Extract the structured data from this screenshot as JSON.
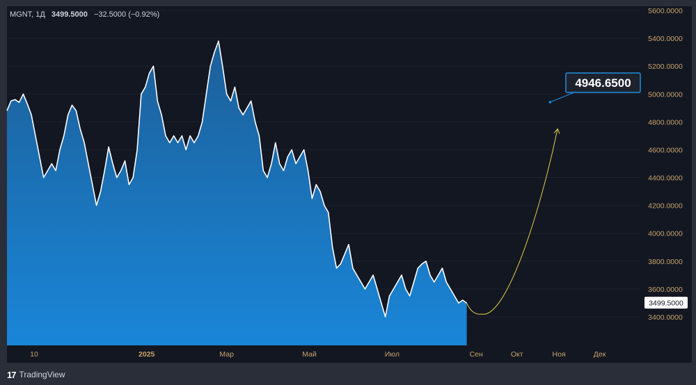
{
  "legend": {
    "symbol": "MGNT, 1Д",
    "price": "3499.5000",
    "change": "−32.5000 (−0.92%)"
  },
  "footer": {
    "brand": "TradingView",
    "logo_icon": "tradingview-logo-icon"
  },
  "colors": {
    "background": "#131722",
    "area_top": "#1c5f99",
    "area_bottom": "#1a86d8",
    "line": "#ffffff",
    "axis_text": "#c8a46a",
    "projection": "#e6cf45",
    "target_box": "#1f8fe0"
  },
  "chart_data": {
    "type": "area",
    "title": "",
    "xlabel": "",
    "ylabel": "",
    "ylim": [
      3200,
      5600
    ],
    "y_ticks": [
      "3400.0000",
      "3600.0000",
      "3800.0000",
      "4000.0000",
      "4200.0000",
      "4400.0000",
      "4600.0000",
      "4800.0000",
      "5000.0000",
      "5200.0000",
      "5400.0000",
      "5600.0000"
    ],
    "x_ticks": [
      "10",
      "2025",
      "Мар",
      "Май",
      "Июл",
      "Сен",
      "Окт",
      "Ноя",
      "Дек"
    ],
    "x_start": "2024-09-20",
    "x_end": "2025-12-31",
    "series": [
      {
        "values": [
          [
            "2024-09-20",
            4880
          ],
          [
            "2024-09-23",
            4950
          ],
          [
            "2024-09-26",
            4960
          ],
          [
            "2024-09-29",
            4940
          ],
          [
            "2024-10-02",
            5000
          ],
          [
            "2024-10-05",
            4930
          ],
          [
            "2024-10-08",
            4850
          ],
          [
            "2024-10-11",
            4700
          ],
          [
            "2024-10-14",
            4550
          ],
          [
            "2024-10-17",
            4400
          ],
          [
            "2024-10-20",
            4450
          ],
          [
            "2024-10-23",
            4500
          ],
          [
            "2024-10-26",
            4450
          ],
          [
            "2024-10-29",
            4600
          ],
          [
            "2024-11-01",
            4700
          ],
          [
            "2024-11-04",
            4850
          ],
          [
            "2024-11-07",
            4920
          ],
          [
            "2024-11-10",
            4880
          ],
          [
            "2024-11-13",
            4750
          ],
          [
            "2024-11-16",
            4650
          ],
          [
            "2024-11-19",
            4500
          ],
          [
            "2024-11-22",
            4350
          ],
          [
            "2024-11-25",
            4200
          ],
          [
            "2024-11-28",
            4300
          ],
          [
            "2024-12-01",
            4450
          ],
          [
            "2024-12-04",
            4620
          ],
          [
            "2024-12-07",
            4500
          ],
          [
            "2024-12-10",
            4400
          ],
          [
            "2024-12-13",
            4450
          ],
          [
            "2024-12-16",
            4520
          ],
          [
            "2024-12-19",
            4350
          ],
          [
            "2024-12-22",
            4400
          ],
          [
            "2024-12-25",
            4600
          ],
          [
            "2024-12-28",
            5000
          ],
          [
            "2024-12-31",
            5050
          ],
          [
            "2025-01-03",
            5150
          ],
          [
            "2025-01-06",
            5200
          ],
          [
            "2025-01-09",
            4950
          ],
          [
            "2025-01-12",
            4850
          ],
          [
            "2025-01-15",
            4700
          ],
          [
            "2025-01-18",
            4650
          ],
          [
            "2025-01-21",
            4700
          ],
          [
            "2025-01-24",
            4650
          ],
          [
            "2025-01-27",
            4700
          ],
          [
            "2025-01-30",
            4600
          ],
          [
            "2025-02-02",
            4700
          ],
          [
            "2025-02-05",
            4650
          ],
          [
            "2025-02-08",
            4700
          ],
          [
            "2025-02-11",
            4800
          ],
          [
            "2025-02-14",
            5000
          ],
          [
            "2025-02-17",
            5200
          ],
          [
            "2025-02-20",
            5300
          ],
          [
            "2025-02-23",
            5380
          ],
          [
            "2025-02-26",
            5200
          ],
          [
            "2025-03-01",
            5000
          ],
          [
            "2025-03-04",
            4950
          ],
          [
            "2025-03-07",
            5050
          ],
          [
            "2025-03-10",
            4900
          ],
          [
            "2025-03-13",
            4850
          ],
          [
            "2025-03-16",
            4900
          ],
          [
            "2025-03-19",
            4950
          ],
          [
            "2025-03-22",
            4800
          ],
          [
            "2025-03-25",
            4700
          ],
          [
            "2025-03-28",
            4450
          ],
          [
            "2025-03-31",
            4400
          ],
          [
            "2025-04-03",
            4500
          ],
          [
            "2025-04-06",
            4650
          ],
          [
            "2025-04-09",
            4500
          ],
          [
            "2025-04-12",
            4450
          ],
          [
            "2025-04-15",
            4550
          ],
          [
            "2025-04-18",
            4600
          ],
          [
            "2025-04-21",
            4500
          ],
          [
            "2025-04-24",
            4550
          ],
          [
            "2025-04-27",
            4600
          ],
          [
            "2025-04-30",
            4450
          ],
          [
            "2025-05-03",
            4250
          ],
          [
            "2025-05-06",
            4350
          ],
          [
            "2025-05-09",
            4300
          ],
          [
            "2025-05-12",
            4200
          ],
          [
            "2025-05-15",
            4150
          ],
          [
            "2025-05-18",
            3900
          ],
          [
            "2025-05-21",
            3750
          ],
          [
            "2025-05-24",
            3780
          ],
          [
            "2025-05-27",
            3850
          ],
          [
            "2025-05-30",
            3920
          ],
          [
            "2025-06-02",
            3750
          ],
          [
            "2025-06-05",
            3700
          ],
          [
            "2025-06-08",
            3650
          ],
          [
            "2025-06-11",
            3600
          ],
          [
            "2025-06-14",
            3650
          ],
          [
            "2025-06-17",
            3700
          ],
          [
            "2025-06-20",
            3600
          ],
          [
            "2025-06-23",
            3500
          ],
          [
            "2025-06-26",
            3400
          ],
          [
            "2025-06-29",
            3550
          ],
          [
            "2025-07-02",
            3600
          ],
          [
            "2025-07-05",
            3650
          ],
          [
            "2025-07-08",
            3700
          ],
          [
            "2025-07-11",
            3600
          ],
          [
            "2025-07-14",
            3550
          ],
          [
            "2025-07-17",
            3650
          ],
          [
            "2025-07-20",
            3750
          ],
          [
            "2025-07-23",
            3780
          ],
          [
            "2025-07-26",
            3800
          ],
          [
            "2025-07-29",
            3700
          ],
          [
            "2025-08-01",
            3650
          ],
          [
            "2025-08-04",
            3700
          ],
          [
            "2025-08-07",
            3750
          ],
          [
            "2025-08-10",
            3650
          ],
          [
            "2025-08-13",
            3600
          ],
          [
            "2025-08-16",
            3550
          ],
          [
            "2025-08-19",
            3500
          ],
          [
            "2025-08-22",
            3520
          ],
          [
            "2025-08-25",
            3499.5
          ]
        ]
      }
    ],
    "projection": {
      "start": [
        "2025-08-25",
        3499.5
      ],
      "low": [
        "2025-09-05",
        3420
      ],
      "end": [
        "2025-10-31",
        4750
      ]
    },
    "target_label": "4946.6500",
    "target_point": [
      "2025-10-27",
      4946.65
    ],
    "last_price_label": "3499.5000",
    "last_price": 3499.5
  }
}
